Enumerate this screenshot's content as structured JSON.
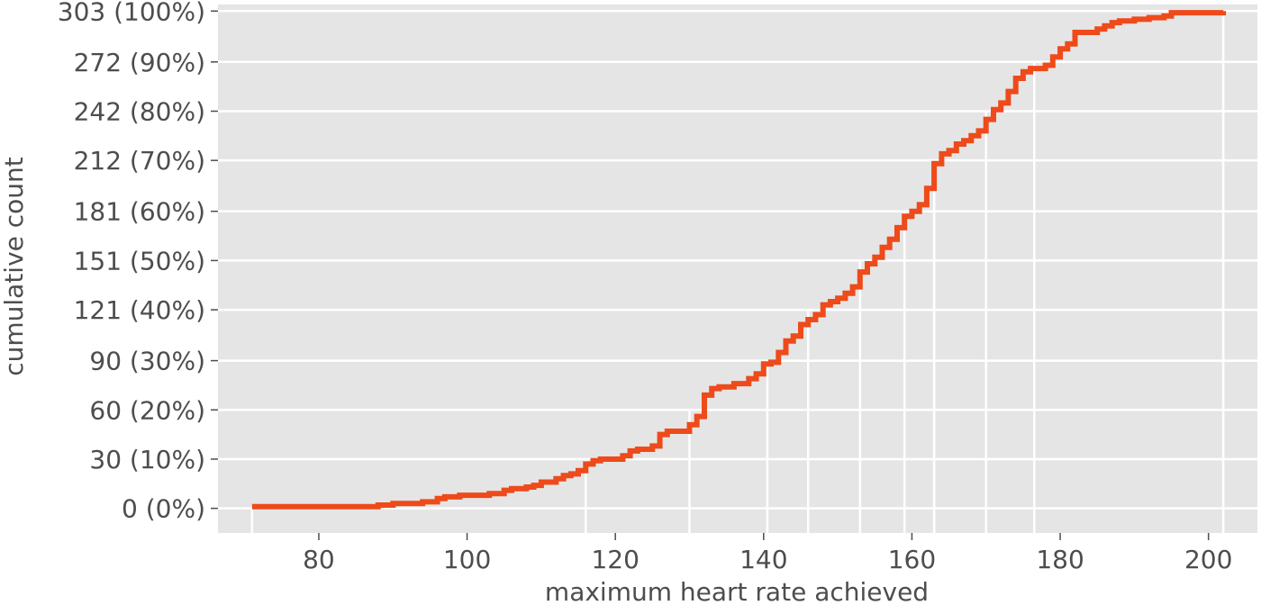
{
  "chart_data": {
    "type": "line",
    "style": "step",
    "xlabel": "maximum heart rate achieved",
    "ylabel": "cumulative count",
    "xlim": [
      66.4,
      206.6
    ],
    "ylim": [
      -15,
      307
    ],
    "grid": true,
    "background_color": "#e5e5e5",
    "grid_color": "#ffffff",
    "series_color": "#ee4a1a",
    "x_ticks": [
      80,
      100,
      120,
      140,
      160,
      180,
      200
    ],
    "x_tick_labels": [
      "80",
      "100",
      "120",
      "140",
      "160",
      "180",
      "200"
    ],
    "y_ticks": [
      0,
      30,
      60,
      90,
      121,
      151,
      181,
      212,
      242,
      272,
      303
    ],
    "y_tick_labels": [
      "0 (0%)",
      "30 (10%)",
      "60 (20%)",
      "90 (30%)",
      "121 (40%)",
      "151 (50%)",
      "181 (60%)",
      "212 (70%)",
      "242 (80%)",
      "272 (90%)",
      "303 (100%)"
    ],
    "decile_markers": [
      {
        "x": 71,
        "y": 0
      },
      {
        "x": 116,
        "y": 30
      },
      {
        "x": 130,
        "y": 60
      },
      {
        "x": 140.5,
        "y": 90
      },
      {
        "x": 146,
        "y": 121
      },
      {
        "x": 153,
        "y": 151
      },
      {
        "x": 159,
        "y": 181
      },
      {
        "x": 163,
        "y": 212
      },
      {
        "x": 170,
        "y": 242
      },
      {
        "x": 176.5,
        "y": 272
      },
      {
        "x": 202,
        "y": 303
      }
    ],
    "series": [
      {
        "points": [
          [
            71,
            1
          ],
          [
            88,
            2
          ],
          [
            90,
            3
          ],
          [
            94,
            4
          ],
          [
            96,
            6
          ],
          [
            97,
            7
          ],
          [
            99,
            8
          ],
          [
            103,
            9
          ],
          [
            105,
            11
          ],
          [
            106,
            12
          ],
          [
            108,
            13
          ],
          [
            109,
            14
          ],
          [
            110,
            16
          ],
          [
            112,
            18
          ],
          [
            113,
            20
          ],
          [
            114,
            21
          ],
          [
            115,
            23
          ],
          [
            116,
            27
          ],
          [
            117,
            29
          ],
          [
            118,
            30
          ],
          [
            121,
            32
          ],
          [
            122,
            35
          ],
          [
            123,
            36
          ],
          [
            125,
            38
          ],
          [
            126,
            45
          ],
          [
            127,
            47
          ],
          [
            130,
            51
          ],
          [
            131,
            56
          ],
          [
            132,
            69
          ],
          [
            133,
            73
          ],
          [
            134,
            74
          ],
          [
            136,
            76
          ],
          [
            138,
            79
          ],
          [
            139,
            82
          ],
          [
            140,
            88
          ],
          [
            141,
            89
          ],
          [
            142,
            95
          ],
          [
            143,
            102
          ],
          [
            144,
            105
          ],
          [
            145,
            112
          ],
          [
            146,
            115
          ],
          [
            147,
            118
          ],
          [
            148,
            124
          ],
          [
            149,
            126
          ],
          [
            150,
            128
          ],
          [
            151,
            131
          ],
          [
            152,
            135
          ],
          [
            153,
            144
          ],
          [
            154,
            149
          ],
          [
            155,
            153
          ],
          [
            156,
            159
          ],
          [
            157,
            164
          ],
          [
            158,
            171
          ],
          [
            159,
            178
          ],
          [
            160,
            181
          ],
          [
            161,
            185
          ],
          [
            162,
            195
          ],
          [
            163,
            210
          ],
          [
            164,
            216
          ],
          [
            165,
            218
          ],
          [
            166,
            222
          ],
          [
            167,
            224
          ],
          [
            168,
            227
          ],
          [
            169,
            230
          ],
          [
            170,
            237
          ],
          [
            171,
            243
          ],
          [
            172,
            247
          ],
          [
            173,
            254
          ],
          [
            174,
            262
          ],
          [
            175,
            266
          ],
          [
            176,
            268
          ],
          [
            178,
            270
          ],
          [
            179,
            275
          ],
          [
            180,
            280
          ],
          [
            181,
            283
          ],
          [
            182,
            290
          ],
          [
            185,
            292
          ],
          [
            186,
            294
          ],
          [
            187,
            296
          ],
          [
            188,
            297
          ],
          [
            190,
            298
          ],
          [
            192,
            299
          ],
          [
            194,
            300
          ],
          [
            195,
            302
          ],
          [
            202,
            303
          ]
        ]
      }
    ]
  }
}
